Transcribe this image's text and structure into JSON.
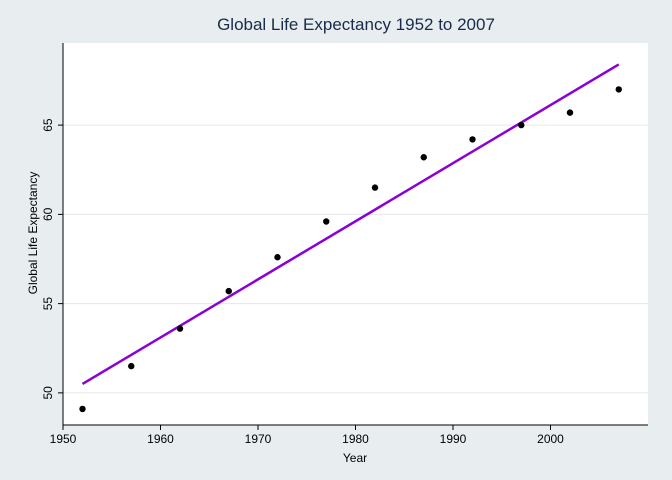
{
  "chart_data": {
    "type": "scatter",
    "title": "Global Life Expectancy 1952 to 2007",
    "xlabel": "Year",
    "ylabel": "Global Life Expectancy",
    "xlim": [
      1950,
      2010
    ],
    "ylim": [
      48.2,
      69.6
    ],
    "xticks": [
      1950,
      1960,
      1970,
      1980,
      1990,
      2000
    ],
    "yticks": [
      50,
      55,
      60,
      65
    ],
    "grid": true,
    "series": [
      {
        "kind": "points",
        "x": [
          1952,
          1957,
          1962,
          1967,
          1972,
          1977,
          1982,
          1987,
          1992,
          1997,
          2002,
          2007
        ],
        "y": [
          49.1,
          51.5,
          53.6,
          55.7,
          57.6,
          59.6,
          61.5,
          63.2,
          64.2,
          65.0,
          65.7,
          67.0
        ]
      },
      {
        "kind": "fit-line",
        "x": [
          1952,
          2007
        ],
        "y": [
          50.5,
          68.4
        ]
      }
    ],
    "colors": {
      "background": "#e8eef0",
      "plot_area": "#ffffff",
      "points": "#000000",
      "fit_line": "#8b00d6",
      "grid": "#e6e6e6",
      "title": "#1a2a4a"
    }
  }
}
